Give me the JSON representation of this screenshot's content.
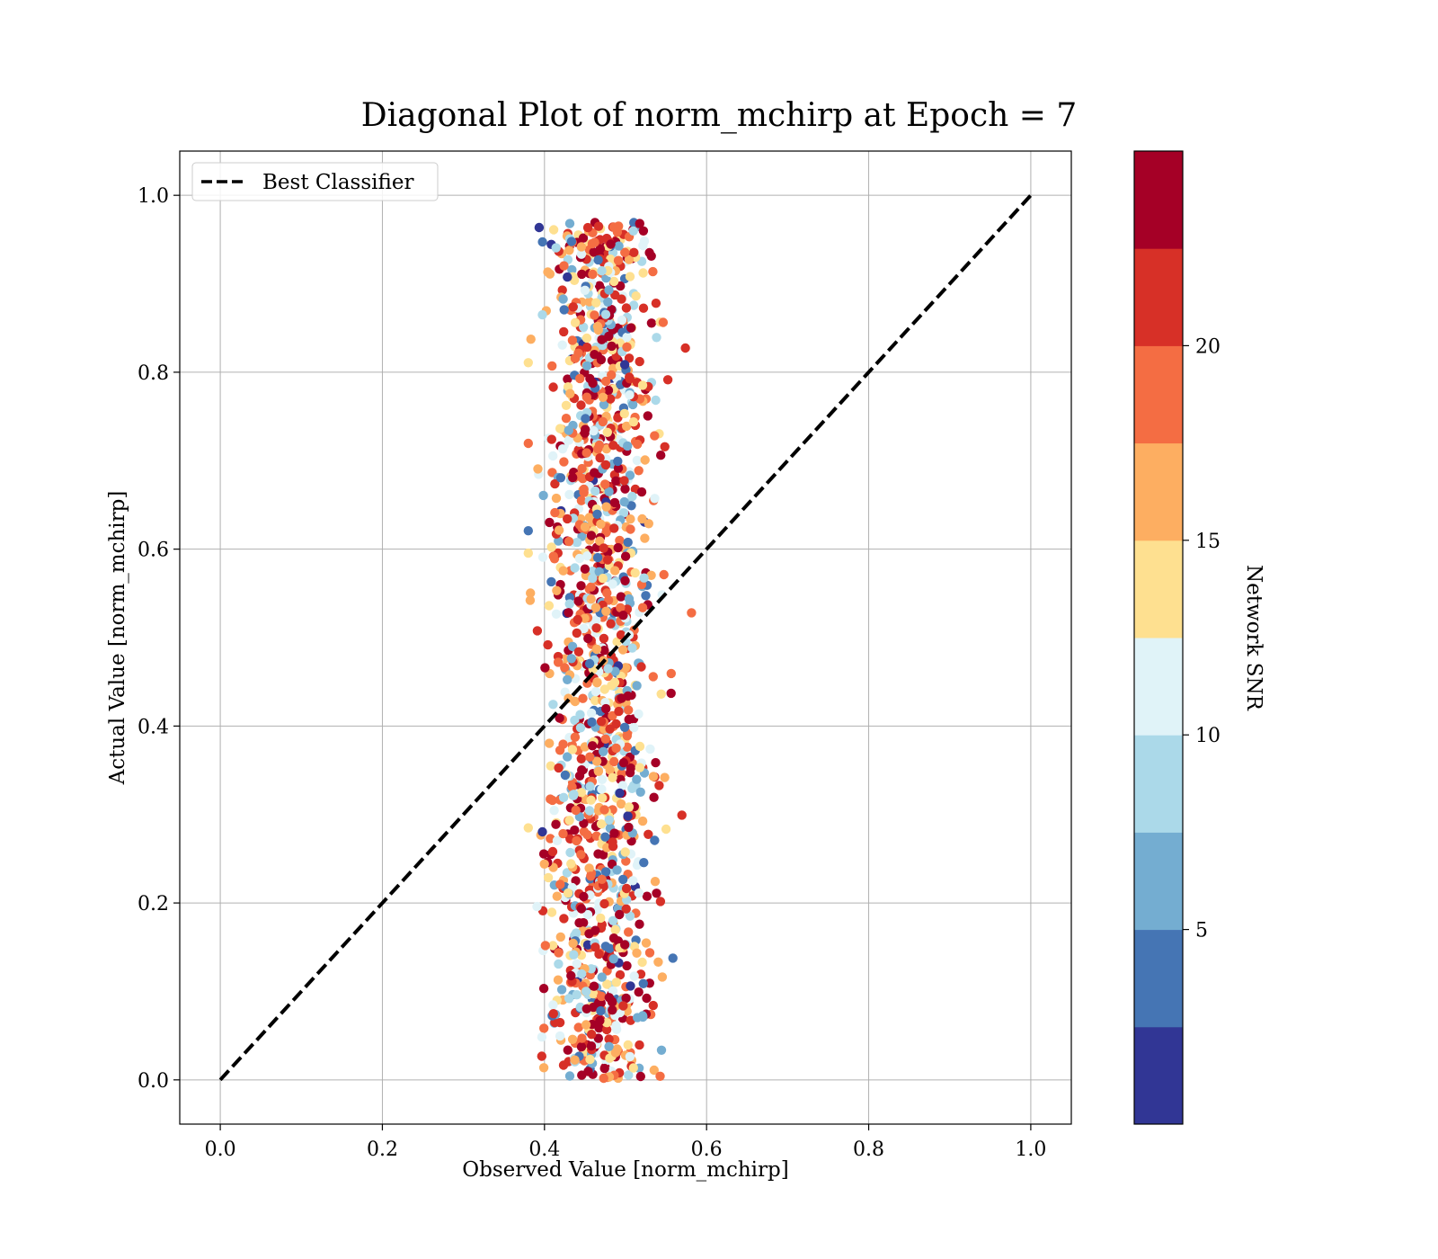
{
  "chart_data": {
    "type": "scatter",
    "title": "Diagonal Plot of norm_mchirp at Epoch = 7",
    "xlabel": "Observed Value [norm_mchirp]",
    "ylabel": "Actual Value [norm_mchirp]",
    "xlim": [
      -0.05,
      1.05
    ],
    "ylim": [
      -0.05,
      1.05
    ],
    "x_ticks": [
      "0.0",
      "0.2",
      "0.4",
      "0.6",
      "0.8",
      "1.0"
    ],
    "y_ticks": [
      "0.0",
      "0.2",
      "0.4",
      "0.6",
      "0.8",
      "1.0"
    ],
    "grid": true,
    "legend": {
      "placement": "upper-left",
      "entries": [
        "Best Classifier"
      ]
    },
    "reference_line": {
      "name": "Best Classifier",
      "style": "dashed",
      "color": "#000000",
      "x": [
        0.0,
        1.0
      ],
      "y": [
        0.0,
        1.0
      ]
    },
    "colorbar": {
      "label": "Network SNR",
      "range": [
        0,
        25
      ],
      "ticks": [
        "5",
        "10",
        "15",
        "20"
      ],
      "tick_values": [
        5,
        10,
        15,
        20
      ],
      "colors": [
        "#313695",
        "#4575b4",
        "#74add1",
        "#abd9e9",
        "#e0f3f8",
        "#fee090",
        "#fdae61",
        "#f46d43",
        "#d73027",
        "#a50026"
      ]
    },
    "points": {
      "observed_range": [
        0.38,
        0.62
      ],
      "actual_range": [
        0.0,
        0.97
      ],
      "snr_range": [
        0,
        25
      ],
      "count": 1500
    }
  }
}
